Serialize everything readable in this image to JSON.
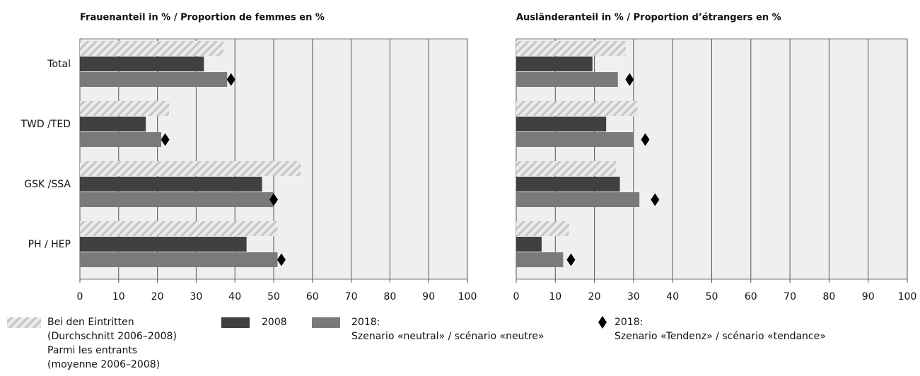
{
  "chart_data": [
    {
      "type": "bar",
      "orientation": "horizontal",
      "title": "Frauenanteil in % / Proportion de femmes en %",
      "categories": [
        "Total",
        "TWD /TED",
        "GSK /SSA",
        "PH / HEP"
      ],
      "xlim": [
        0,
        100
      ],
      "xticks": [
        0,
        10,
        20,
        30,
        40,
        50,
        60,
        70,
        80,
        90,
        100
      ],
      "grid": true,
      "series": [
        {
          "name": [
            "Bei den Eintritten",
            "(Durchschnitt 2006–2008)",
            "Parmi les entrants",
            "(moyenne 2006–2008)"
          ],
          "color": "#cfcfcf",
          "pattern": "hatch",
          "values": [
            37,
            23,
            57,
            51
          ]
        },
        {
          "name": [
            "2008"
          ],
          "color": "#404040",
          "values": [
            32,
            17,
            47,
            43
          ]
        },
        {
          "name": [
            "2018:",
            "Szenario «neutral» / scénario «neutre»"
          ],
          "color": "#7a7a7a",
          "values": [
            38,
            21,
            50,
            51
          ]
        },
        {
          "name": [
            "2018:",
            "Szenario «Tendenz» / scénario «tendance»"
          ],
          "color": "#000000",
          "marker": "diamond",
          "values": [
            39,
            22,
            50,
            52
          ]
        }
      ]
    },
    {
      "type": "bar",
      "orientation": "horizontal",
      "title": "Ausländeranteil in % / Proportion d’étrangers en %",
      "xlim": [
        0,
        100
      ],
      "xticks": [
        0,
        10,
        20,
        30,
        40,
        50,
        60,
        70,
        80,
        90,
        100
      ],
      "grid": true,
      "series": [
        {
          "color": "#cfcfcf",
          "pattern": "hatch",
          "values": [
            28,
            31,
            25.5,
            13.5
          ]
        },
        {
          "color": "#404040",
          "values": [
            19.5,
            23,
            26.5,
            6.5
          ]
        },
        {
          "color": "#7a7a7a",
          "values": [
            26,
            30,
            31.5,
            12
          ]
        },
        {
          "color": "#000000",
          "marker": "diamond",
          "values": [
            29,
            33,
            35.5,
            14
          ]
        }
      ]
    }
  ]
}
